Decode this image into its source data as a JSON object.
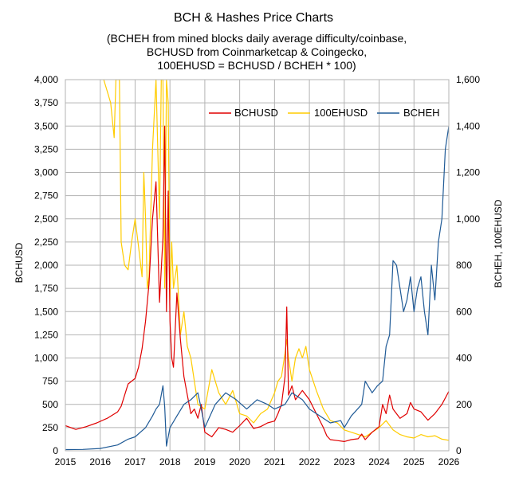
{
  "chart_data": {
    "type": "line",
    "title": "BCH & Hashes Price Charts",
    "subtitle_lines": [
      "(BCHEH from mined blocks daily average difficulty/coinbase,",
      "BCHUSD from Coinmarketcap & Coingecko,",
      "100EHUSD = BCHUSD / BCHEH * 100)"
    ],
    "ylabel_left": "BCHUSD",
    "ylabel_right": "BCHEH, 100EHUSD",
    "xlim": [
      2015,
      2026
    ],
    "ylim_left": [
      0,
      4000
    ],
    "ylim_right": [
      0,
      1600
    ],
    "x_ticks": [
      "2015",
      "2016",
      "2017",
      "2018",
      "2019",
      "2020",
      "2021",
      "2022",
      "2023",
      "2024",
      "2025",
      "2026"
    ],
    "y_left_ticks": [
      "0",
      "250",
      "500",
      "750",
      "1,000",
      "1,250",
      "1,500",
      "1,750",
      "2,000",
      "2,250",
      "2,500",
      "2,750",
      "3,000",
      "3,250",
      "3,500",
      "3,750",
      "4,000"
    ],
    "y_right_ticks": [
      "0",
      "200",
      "400",
      "600",
      "800",
      "1,000",
      "1,200",
      "1,400",
      "1,600"
    ],
    "grid": "vertical-and-horizontal",
    "legend_position": "top-right",
    "series": [
      {
        "name": "BCHUSD",
        "axis": "left",
        "color": "#e00000",
        "x": [
          2015.0,
          2015.3,
          2015.6,
          2015.9,
          2016.2,
          2016.5,
          2016.6,
          2016.8,
          2017.0,
          2017.1,
          2017.2,
          2017.3,
          2017.4,
          2017.5,
          2017.6,
          2017.7,
          2017.8,
          2017.85,
          2017.9,
          2017.95,
          2018.0,
          2018.05,
          2018.1,
          2018.2,
          2018.3,
          2018.4,
          2018.5,
          2018.6,
          2018.7,
          2018.8,
          2018.9,
          2019.0,
          2019.2,
          2019.4,
          2019.6,
          2019.8,
          2020.0,
          2020.2,
          2020.4,
          2020.6,
          2020.8,
          2021.0,
          2021.1,
          2021.2,
          2021.3,
          2021.35,
          2021.4,
          2021.5,
          2021.6,
          2021.8,
          2022.0,
          2022.2,
          2022.4,
          2022.5,
          2022.6,
          2022.8,
          2023.0,
          2023.2,
          2023.4,
          2023.5,
          2023.6,
          2023.8,
          2024.0,
          2024.1,
          2024.2,
          2024.3,
          2024.4,
          2024.6,
          2024.8,
          2024.9,
          2025.0,
          2025.2,
          2025.4,
          2025.6,
          2025.8,
          2026.0
        ],
        "values": [
          270,
          230,
          260,
          300,
          350,
          420,
          480,
          720,
          780,
          900,
          1100,
          1400,
          1800,
          2500,
          2900,
          1600,
          2300,
          3500,
          1500,
          2800,
          1400,
          1000,
          900,
          1700,
          1200,
          800,
          600,
          400,
          450,
          350,
          500,
          200,
          150,
          250,
          230,
          200,
          270,
          350,
          240,
          260,
          300,
          320,
          400,
          500,
          800,
          1550,
          600,
          700,
          550,
          650,
          550,
          400,
          250,
          160,
          120,
          110,
          100,
          120,
          130,
          180,
          120,
          200,
          260,
          500,
          400,
          600,
          450,
          350,
          400,
          520,
          450,
          420,
          330,
          400,
          500,
          640
        ]
      },
      {
        "name": "100EHUSD",
        "axis": "right",
        "color": "#ffcc00",
        "x": [
          2016.1,
          2016.2,
          2016.3,
          2016.4,
          2016.45,
          2016.5,
          2016.55,
          2016.6,
          2016.7,
          2016.8,
          2016.9,
          2017.0,
          2017.1,
          2017.2,
          2017.25,
          2017.3,
          2017.35,
          2017.4,
          2017.5,
          2017.6,
          2017.7,
          2017.75,
          2017.8,
          2017.85,
          2017.9,
          2017.95,
          2018.0,
          2018.05,
          2018.1,
          2018.2,
          2018.3,
          2018.4,
          2018.5,
          2018.6,
          2018.7,
          2018.8,
          2019.0,
          2019.2,
          2019.4,
          2019.6,
          2019.8,
          2020.0,
          2020.2,
          2020.4,
          2020.6,
          2020.8,
          2021.0,
          2021.1,
          2021.2,
          2021.3,
          2021.35,
          2021.4,
          2021.5,
          2021.6,
          2021.7,
          2021.8,
          2021.9,
          2022.0,
          2022.2,
          2022.4,
          2022.6,
          2022.8,
          2023.0,
          2023.2,
          2023.4,
          2023.6,
          2023.8,
          2024.0,
          2024.2,
          2024.4,
          2024.6,
          2024.8,
          2025.0,
          2025.2,
          2025.4,
          2025.6,
          2025.8,
          2026.0
        ],
        "values": [
          1600,
          1550,
          1500,
          1350,
          1600,
          1600,
          1600,
          900,
          800,
          780,
          900,
          1000,
          880,
          750,
          1200,
          1000,
          700,
          750,
          1300,
          1600,
          1000,
          1600,
          1600,
          700,
          1600,
          1500,
          650,
          900,
          700,
          800,
          500,
          600,
          450,
          400,
          300,
          200,
          180,
          350,
          250,
          200,
          260,
          160,
          150,
          120,
          160,
          180,
          250,
          300,
          320,
          420,
          480,
          400,
          300,
          400,
          440,
          400,
          450,
          350,
          260,
          180,
          130,
          120,
          90,
          80,
          70,
          60,
          80,
          100,
          130,
          90,
          70,
          60,
          55,
          70,
          60,
          65,
          50,
          45
        ]
      },
      {
        "name": "BCHEH",
        "axis": "right",
        "color": "#1f5a96",
        "x": [
          2015.0,
          2015.5,
          2016.0,
          2016.5,
          2016.8,
          2017.0,
          2017.3,
          2017.5,
          2017.6,
          2017.7,
          2017.8,
          2017.85,
          2017.9,
          2018.0,
          2018.2,
          2018.4,
          2018.6,
          2018.8,
          2018.9,
          2019.0,
          2019.3,
          2019.6,
          2019.9,
          2020.2,
          2020.5,
          2020.8,
          2021.0,
          2021.3,
          2021.5,
          2021.8,
          2022.0,
          2022.3,
          2022.6,
          2022.9,
          2023.0,
          2023.2,
          2023.5,
          2023.6,
          2023.8,
          2023.95,
          2024.1,
          2024.2,
          2024.3,
          2024.4,
          2024.5,
          2024.6,
          2024.7,
          2024.8,
          2024.9,
          2025.0,
          2025.1,
          2025.2,
          2025.3,
          2025.4,
          2025.5,
          2025.6,
          2025.7,
          2025.8,
          2025.9,
          2026.0
        ],
        "values": [
          5,
          6,
          10,
          25,
          50,
          60,
          100,
          150,
          180,
          200,
          280,
          190,
          20,
          100,
          150,
          200,
          220,
          250,
          180,
          100,
          200,
          250,
          220,
          180,
          220,
          200,
          180,
          200,
          250,
          220,
          180,
          150,
          120,
          130,
          100,
          150,
          200,
          300,
          250,
          280,
          300,
          450,
          500,
          820,
          800,
          700,
          600,
          650,
          750,
          600,
          700,
          750,
          600,
          500,
          800,
          650,
          900,
          1000,
          1300,
          1400
        ]
      }
    ]
  }
}
